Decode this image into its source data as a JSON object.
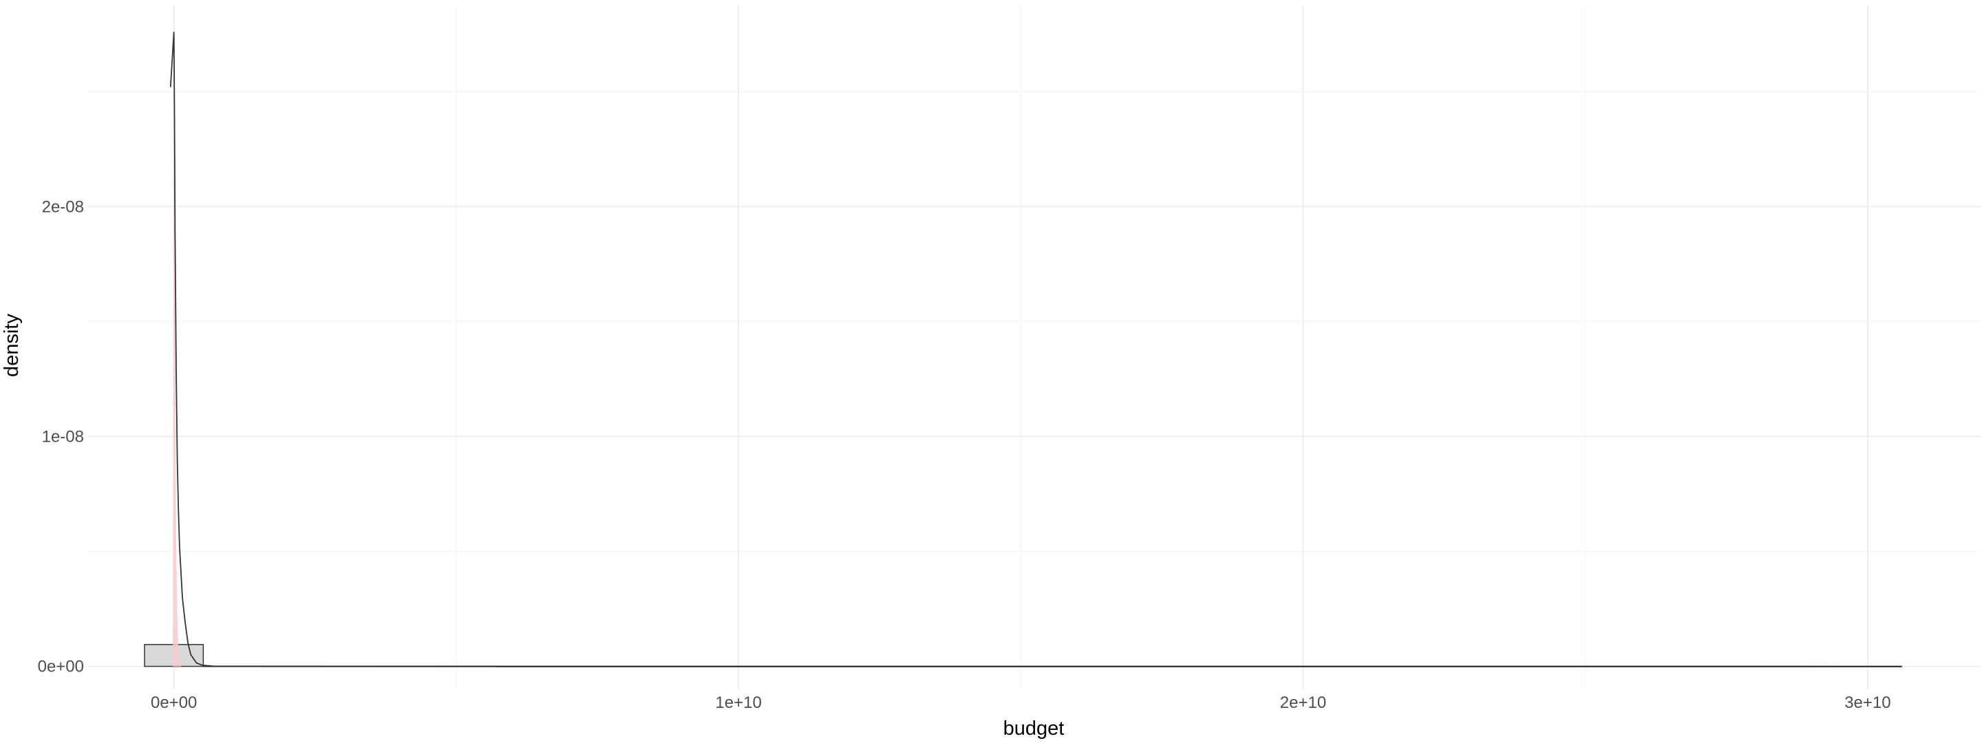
{
  "chart_data": {
    "type": "histogram",
    "title": "",
    "xlabel": "budget",
    "ylabel": "density",
    "xlim": [
      -1520000000.0,
      32000000000.0
    ],
    "ylim": [
      -1e-09,
      2.875e-08
    ],
    "x_ticks": [
      {
        "value": 0,
        "label": "0e+00"
      },
      {
        "value": 10000000000.0,
        "label": "1e+10"
      },
      {
        "value": 20000000000.0,
        "label": "2e+10"
      },
      {
        "value": 30000000000.0,
        "label": "3e+10"
      }
    ],
    "x_minor_ticks": [
      5000000000.0,
      15000000000.0,
      25000000000.0
    ],
    "y_ticks": [
      {
        "value": 0,
        "label": "0e+00"
      },
      {
        "value": 1e-08,
        "label": "1e-08"
      },
      {
        "value": 2e-08,
        "label": "2e-08"
      }
    ],
    "y_minor_ticks": [
      5e-09,
      1.5e-08,
      2.5e-08
    ],
    "grid": true,
    "legend": "none",
    "bar_color": "#d9d9d9",
    "bar_outline": "#333333",
    "density_fill": "#f8c9cb",
    "density_line": "#333333",
    "bins": [
      {
        "x0": -520000000.0,
        "x1": 520000000.0,
        "density": 9.5e-10
      },
      {
        "x0": 520000000.0,
        "x1": 1560000000.0,
        "density": 1e-11
      },
      {
        "x0": 1560000000.0,
        "x1": 2600000000.0,
        "density": 8e-12
      },
      {
        "x0": 2600000000.0,
        "x1": 3640000000.0,
        "density": 6e-12
      },
      {
        "x0": 3640000000.0,
        "x1": 4680000000.0,
        "density": 5e-12
      },
      {
        "x0": 4680000000.0,
        "x1": 5720000000.0,
        "density": 4e-12
      },
      {
        "x0": 5720000000.0,
        "x1": 30600000000.0,
        "density": 0.0
      }
    ],
    "density_curve": {
      "x": [
        -60000000.0,
        -40000000.0,
        -20000000.0,
        0,
        10000000.0,
        20000000.0,
        40000000.0,
        60000000.0,
        80000000.0,
        100000000.0,
        150000000.0,
        200000000.0,
        250000000.0,
        300000000.0,
        400000000.0,
        500000000.0,
        700000000.0,
        1000000000.0,
        2000000000.0,
        5000000000.0,
        10000000000.0,
        20000000000.0,
        30600000000.0
      ],
      "y": [
        2.52e-08,
        2.6e-08,
        2.68e-08,
        2.76e-08,
        2.4e-08,
        1.9e-08,
        1.3e-08,
        9e-09,
        6.8e-09,
        5.2e-09,
        3e-09,
        1.9e-09,
        1e-09,
        5e-10,
        1.5e-10,
        5e-11,
        1e-11,
        3e-12,
        1e-12,
        5e-13,
        2e-13,
        1e-13,
        0
      ]
    },
    "density_area": {
      "x": [
        -20000000.0,
        -10000000.0,
        0,
        10000000.0,
        20000000.0,
        30000000.0,
        40000000.0,
        60000000.0,
        80000000.0,
        100000000.0,
        130000000.0
      ],
      "y": [
        0,
        1.2e-08,
        2.55e-08,
        2.3e-08,
        1.6e-08,
        1e-08,
        5.5e-09,
        2.2e-09,
        8e-10,
        2e-10,
        0
      ]
    }
  }
}
